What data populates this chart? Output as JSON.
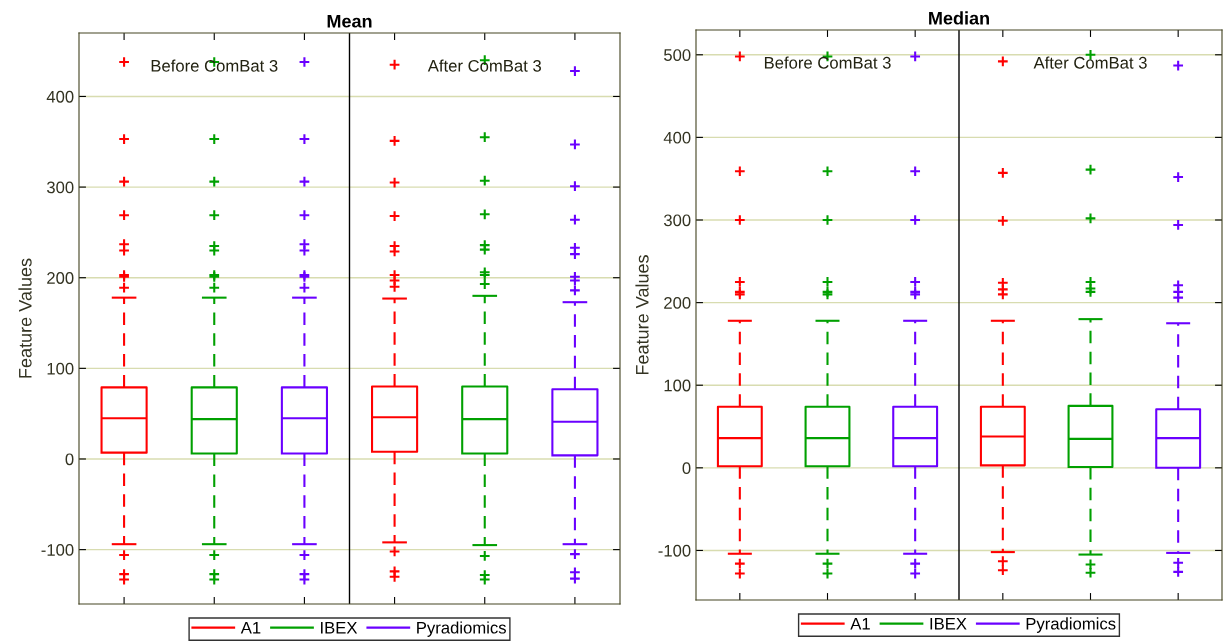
{
  "chart_data": [
    {
      "type": "box",
      "title": "Mean",
      "ylabel": "Feature Values",
      "categories": [
        null,
        null,
        null,
        null,
        null,
        null
      ],
      "ylim": [
        -160,
        470
      ],
      "yticks": [
        -100,
        0,
        100,
        200,
        300,
        400
      ],
      "grid": "y",
      "legend": "bottom",
      "marker": "cross",
      "line_style": "dashed",
      "annotations": [
        "Before ComBat 3",
        "After ComBat 3"
      ],
      "series": [
        {
          "name": "A1",
          "color": "#ff0000",
          "boxes": [
            {
              "low": -94,
              "q1": 7,
              "median": 45,
              "q3": 79,
              "high": 178,
              "outliers": [
                438,
                353,
                306,
                269,
                237,
                230,
                203,
                201,
                189,
                -106,
                -127,
                -133
              ]
            },
            null,
            null,
            {
              "low": -92,
              "q1": 8,
              "median": 46,
              "q3": 80,
              "high": 177,
              "outliers": [
                435,
                351,
                305,
                268,
                235,
                229,
                203,
                197,
                190,
                -102,
                -124,
                -130
              ]
            },
            null,
            null
          ]
        },
        {
          "name": "IBEX",
          "color": "#00a000",
          "boxes": [
            null,
            {
              "low": -94,
              "q1": 6,
              "median": 44,
              "q3": 79,
              "high": 178,
              "outliers": [
                438,
                353,
                306,
                269,
                235,
                230,
                203,
                201,
                189,
                -106,
                -127,
                -133
              ]
            },
            null,
            null,
            {
              "low": -95,
              "q1": 6,
              "median": 44,
              "q3": 80,
              "high": 180,
              "outliers": [
                440,
                355,
                307,
                270,
                236,
                231,
                206,
                203,
                193,
                -107,
                -128,
                -133
              ]
            },
            null
          ]
        },
        {
          "name": "Pyradiomics",
          "color": "#6a00ff",
          "boxes": [
            null,
            null,
            {
              "low": -94,
              "q1": 6,
              "median": 45,
              "q3": 79,
              "high": 178,
              "outliers": [
                438,
                353,
                306,
                269,
                237,
                230,
                203,
                201,
                189,
                -106,
                -127,
                -133
              ]
            },
            null,
            null,
            {
              "low": -94,
              "q1": 4,
              "median": 41,
              "q3": 77,
              "high": 173,
              "outliers": [
                428,
                347,
                301,
                264,
                233,
                226,
                201,
                197,
                186,
                -105,
                -125,
                -132
              ]
            }
          ]
        }
      ]
    },
    {
      "type": "box",
      "title": "Median",
      "ylabel": "Feature Values",
      "categories": [
        null,
        null,
        null,
        null,
        null,
        null
      ],
      "ylim": [
        -160,
        530
      ],
      "yticks": [
        -100,
        0,
        100,
        200,
        300,
        400,
        500
      ],
      "grid": "y",
      "legend": "bottom",
      "marker": "cross",
      "line_style": "dashed",
      "annotations": [
        "Before ComBat 3",
        "After ComBat 3"
      ],
      "series": [
        {
          "name": "A1",
          "color": "#ff0000",
          "boxes": [
            {
              "low": -104,
              "q1": 2,
              "median": 36,
              "q3": 74,
              "high": 178,
              "outliers": [
                498,
                359,
                300,
                225,
                213,
                210,
                -116,
                -128
              ]
            },
            null,
            null,
            {
              "low": -102,
              "q1": 3,
              "median": 38,
              "q3": 74,
              "high": 178,
              "outliers": [
                492,
                357,
                299,
                224,
                216,
                210,
                -113,
                -124
              ]
            },
            null,
            null
          ]
        },
        {
          "name": "IBEX",
          "color": "#00a000",
          "boxes": [
            null,
            {
              "low": -104,
              "q1": 2,
              "median": 36,
              "q3": 74,
              "high": 178,
              "outliers": [
                498,
                359,
                300,
                225,
                213,
                210,
                -116,
                -128
              ]
            },
            null,
            null,
            {
              "low": -105,
              "q1": 1,
              "median": 35,
              "q3": 75,
              "high": 180,
              "outliers": [
                500,
                361,
                302,
                225,
                217,
                213,
                -117,
                -127
              ]
            },
            null
          ]
        },
        {
          "name": "Pyradiomics",
          "color": "#6a00ff",
          "boxes": [
            null,
            null,
            {
              "low": -104,
              "q1": 2,
              "median": 36,
              "q3": 74,
              "high": 178,
              "outliers": [
                498,
                359,
                300,
                225,
                213,
                210,
                -116,
                -128
              ]
            },
            null,
            null,
            {
              "low": -103,
              "q1": 0,
              "median": 36,
              "q3": 71,
              "high": 175,
              "outliers": [
                487,
                352,
                294,
                221,
                213,
                206,
                -115,
                -126
              ]
            }
          ]
        }
      ]
    }
  ]
}
